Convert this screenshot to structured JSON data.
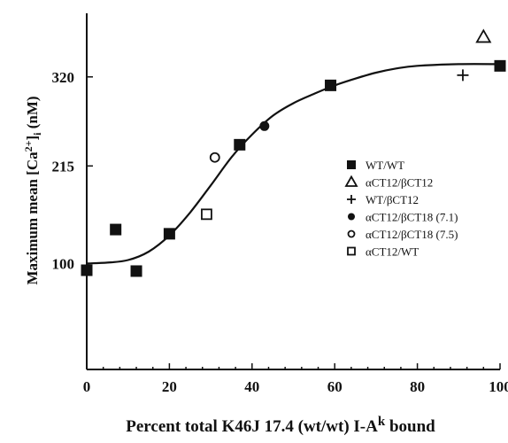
{
  "chart_data": {
    "type": "scatter",
    "title": "",
    "xlabel": {
      "main": "Percent total K46J 17.4 (wt/wt) I-A",
      "sup": "k",
      "tail": " bound"
    },
    "ylabel": {
      "main": "Maximum mean [Ca",
      "sup": "2+",
      "mid": "]",
      "sub": "i",
      "tail": " (nM)"
    },
    "xlim": [
      0,
      100
    ],
    "ylim": [
      -25,
      395
    ],
    "x_ticks": [
      0,
      20,
      40,
      60,
      80,
      100
    ],
    "y_ticks": [
      100,
      215,
      320
    ],
    "grid": false,
    "legend_position": "right",
    "series": [
      {
        "name": "WT/WT",
        "marker": "filled-square",
        "points": [
          [
            0,
            92
          ],
          [
            7,
            140
          ],
          [
            12,
            91
          ],
          [
            20,
            135
          ],
          [
            37,
            240
          ],
          [
            59,
            310
          ],
          [
            100,
            333
          ]
        ]
      },
      {
        "name": "αCT12/βCT12",
        "marker": "open-triangle",
        "points": [
          [
            96,
            367
          ]
        ]
      },
      {
        "name": "WT/βCT12",
        "marker": "plus",
        "points": [
          [
            91,
            322
          ]
        ]
      },
      {
        "name": "αCT12/βCT18 (7.1)",
        "marker": "filled-circle",
        "points": [
          [
            43,
            262
          ]
        ]
      },
      {
        "name": "αCT12/βCT18 (7.5)",
        "marker": "open-circle",
        "points": [
          [
            31,
            225
          ]
        ]
      },
      {
        "name": "αCT12/WT",
        "marker": "open-square",
        "points": [
          [
            29,
            158
          ]
        ]
      }
    ],
    "fit_curve": [
      [
        0,
        100
      ],
      [
        5,
        101
      ],
      [
        10,
        104
      ],
      [
        15,
        114
      ],
      [
        20,
        133
      ],
      [
        25,
        160
      ],
      [
        30,
        192
      ],
      [
        35,
        225
      ],
      [
        40,
        252
      ],
      [
        45,
        274
      ],
      [
        50,
        289
      ],
      [
        55,
        300
      ],
      [
        60,
        310
      ],
      [
        65,
        318
      ],
      [
        70,
        325
      ],
      [
        75,
        330
      ],
      [
        80,
        333
      ],
      [
        90,
        335
      ],
      [
        100,
        335
      ]
    ]
  }
}
